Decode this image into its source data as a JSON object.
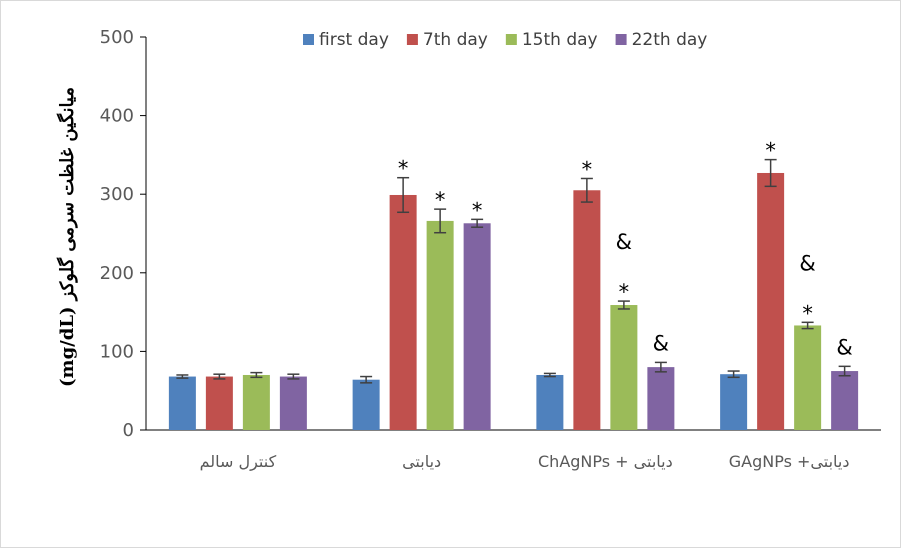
{
  "chart_data": {
    "type": "bar",
    "ylabel": "میانگین غلظت سرمی گلوکز (mg/dL)",
    "ylim": [
      0,
      500
    ],
    "yticks": [
      0,
      100,
      200,
      300,
      400,
      500
    ],
    "grid": false,
    "legend_position": "top",
    "categories": [
      "کنترل سالم",
      "دیابتی",
      "دیابتی + ChAgNPs",
      "دیابتی+ GAgNPs"
    ],
    "series": [
      {
        "name": "first day",
        "color": "#4f81bd",
        "values": [
          68,
          64,
          70,
          71
        ],
        "errors": [
          2,
          4,
          2,
          4
        ]
      },
      {
        "name": "7th day",
        "color": "#c0504d",
        "values": [
          68,
          299,
          305,
          327
        ],
        "errors": [
          3,
          22,
          15,
          17
        ]
      },
      {
        "name": "15th day",
        "color": "#9bbb59",
        "values": [
          70,
          266,
          159,
          133
        ],
        "errors": [
          3,
          15,
          5,
          4
        ]
      },
      {
        "name": "22th day",
        "color": "#8064a2",
        "values": [
          68,
          263,
          80,
          75
        ],
        "errors": [
          3,
          5,
          6,
          6
        ]
      }
    ],
    "annotations": [
      {
        "category": 1,
        "series": 1,
        "text": "*"
      },
      {
        "category": 1,
        "series": 2,
        "text": "*"
      },
      {
        "category": 1,
        "series": 3,
        "text": "*"
      },
      {
        "category": 2,
        "series": 1,
        "text": "*"
      },
      {
        "category": 2,
        "series": 2,
        "text": "*"
      },
      {
        "category": 2,
        "series": 2,
        "text": "&"
      },
      {
        "category": 2,
        "series": 3,
        "text": "&"
      },
      {
        "category": 3,
        "series": 1,
        "text": "*"
      },
      {
        "category": 3,
        "series": 2,
        "text": "*"
      },
      {
        "category": 3,
        "series": 2,
        "text": "&"
      },
      {
        "category": 3,
        "series": 3,
        "text": "&"
      }
    ]
  }
}
